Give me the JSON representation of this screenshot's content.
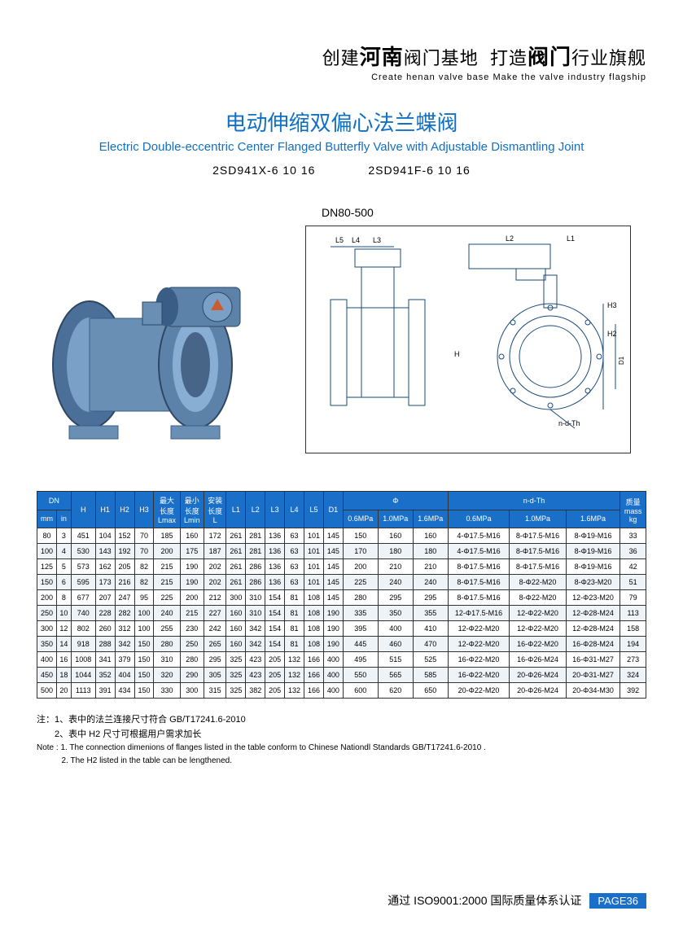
{
  "header": {
    "cn_parts": [
      "创建",
      "河南",
      "阀门基地",
      "打造",
      "阀门",
      "行业旗舰"
    ],
    "en": "Create  henan  valve  base   Make the valve industry flagship"
  },
  "title": {
    "cn": "电动伸缩双偏心法兰蝶阀",
    "en": "Electric Double-eccentric Center Flanged Butterfly Valve with Adjustable Dismantling Joint"
  },
  "models": {
    "m1": "2SD941X-6 10 16",
    "m2": "2SD941F-6  10 16"
  },
  "dn_label": "DN80-500",
  "diagram_labels": {
    "L5": "L5",
    "L4": "L4",
    "L3": "L3",
    "L2": "L2",
    "L1": "L1",
    "H": "H",
    "H2": "H2",
    "H3": "H3",
    "D1": "D1",
    "ndTh": "n-d-Th"
  },
  "table": {
    "header_row1": {
      "dn": "DN",
      "h": "H",
      "h1": "H1",
      "h2": "H2",
      "h3": "H3",
      "lmax": "最大\n长度\nLmax",
      "lmin": "最小\n长度\nLmin",
      "linst": "安装\n长度\nL",
      "l1": "L1",
      "l2": "L2",
      "l3": "L3",
      "l4": "L4",
      "l5": "L5",
      "d1": "D1",
      "phi": "Φ",
      "ndth": "n-d-Th",
      "mass": "质量\nmass\nkg"
    },
    "dn_sub": {
      "mm": "mm",
      "in": "in"
    },
    "phi_sub": {
      "p06": "0.6MPa",
      "p10": "1.0MPa",
      "p16": "1.6MPa"
    },
    "ndth_sub": {
      "p06": "0.6MPa",
      "p10": "1.0MPa",
      "p16": "1.6MPa"
    },
    "rows": [
      [
        "80",
        "3",
        "451",
        "104",
        "152",
        "70",
        "185",
        "160",
        "172",
        "261",
        "281",
        "136",
        "63",
        "101",
        "145",
        "150",
        "160",
        "160",
        "4-Φ17.5-M16",
        "8-Φ17.5-M16",
        "8-Φ19-M16",
        "33"
      ],
      [
        "100",
        "4",
        "530",
        "143",
        "192",
        "70",
        "200",
        "175",
        "187",
        "261",
        "281",
        "136",
        "63",
        "101",
        "145",
        "170",
        "180",
        "180",
        "4-Φ17.5-M16",
        "8-Φ17.5-M16",
        "8-Φ19-M16",
        "36"
      ],
      [
        "125",
        "5",
        "573",
        "162",
        "205",
        "82",
        "215",
        "190",
        "202",
        "261",
        "286",
        "136",
        "63",
        "101",
        "145",
        "200",
        "210",
        "210",
        "8-Φ17.5-M16",
        "8-Φ17.5-M16",
        "8-Φ19-M16",
        "42"
      ],
      [
        "150",
        "6",
        "595",
        "173",
        "216",
        "82",
        "215",
        "190",
        "202",
        "261",
        "286",
        "136",
        "63",
        "101",
        "145",
        "225",
        "240",
        "240",
        "8-Φ17.5-M16",
        "8-Φ22-M20",
        "8-Φ23-M20",
        "51"
      ],
      [
        "200",
        "8",
        "677",
        "207",
        "247",
        "95",
        "225",
        "200",
        "212",
        "300",
        "310",
        "154",
        "81",
        "108",
        "145",
        "280",
        "295",
        "295",
        "8-Φ17.5-M16",
        "8-Φ22-M20",
        "12-Φ23-M20",
        "79"
      ],
      [
        "250",
        "10",
        "740",
        "228",
        "282",
        "100",
        "240",
        "215",
        "227",
        "160",
        "310",
        "154",
        "81",
        "108",
        "190",
        "335",
        "350",
        "355",
        "12-Φ17.5-M16",
        "12-Φ22-M20",
        "12-Φ28-M24",
        "113"
      ],
      [
        "300",
        "12",
        "802",
        "260",
        "312",
        "100",
        "255",
        "230",
        "242",
        "160",
        "342",
        "154",
        "81",
        "108",
        "190",
        "395",
        "400",
        "410",
        "12-Φ22-M20",
        "12-Φ22-M20",
        "12-Φ28-M24",
        "158"
      ],
      [
        "350",
        "14",
        "918",
        "288",
        "342",
        "150",
        "280",
        "250",
        "265",
        "160",
        "342",
        "154",
        "81",
        "108",
        "190",
        "445",
        "460",
        "470",
        "12-Φ22-M20",
        "16-Φ22-M20",
        "16-Φ28-M24",
        "194"
      ],
      [
        "400",
        "16",
        "1008",
        "341",
        "379",
        "150",
        "310",
        "280",
        "295",
        "325",
        "423",
        "205",
        "132",
        "166",
        "400",
        "495",
        "515",
        "525",
        "16-Φ22-M20",
        "16-Φ26-M24",
        "16-Φ31-M27",
        "273"
      ],
      [
        "450",
        "18",
        "1044",
        "352",
        "404",
        "150",
        "320",
        "290",
        "305",
        "325",
        "423",
        "205",
        "132",
        "166",
        "400",
        "550",
        "565",
        "585",
        "16-Φ22-M20",
        "20-Φ26-M24",
        "20-Φ31-M27",
        "324"
      ],
      [
        "500",
        "20",
        "1113",
        "391",
        "434",
        "150",
        "330",
        "300",
        "315",
        "325",
        "382",
        "205",
        "132",
        "166",
        "400",
        "600",
        "620",
        "650",
        "20-Φ22-M20",
        "20-Φ26-M24",
        "20-Φ34-M30",
        "392"
      ]
    ]
  },
  "notes": {
    "cn1": "注：1、表中的法兰连接尺寸符合 GB/T17241.6-2010",
    "cn2": "　　2、表中 H2 尺寸可根据用户需求加长",
    "en1": "Note : 1. The connection dimenions   of flanges listed in the table conform to Chinese Nationdl Standards GB/T17241.6-2010 .",
    "en2": "           2. The H2 listed in the table can be lengthened."
  },
  "footer": {
    "text": "通过 ISO9001:2000 国际质量体系认证",
    "page": "PAGE36"
  },
  "colors": {
    "accent": "#1a6fc9",
    "title": "#1070c5",
    "valve_body": "#6a8fb5",
    "valve_dark": "#3a5d85"
  }
}
